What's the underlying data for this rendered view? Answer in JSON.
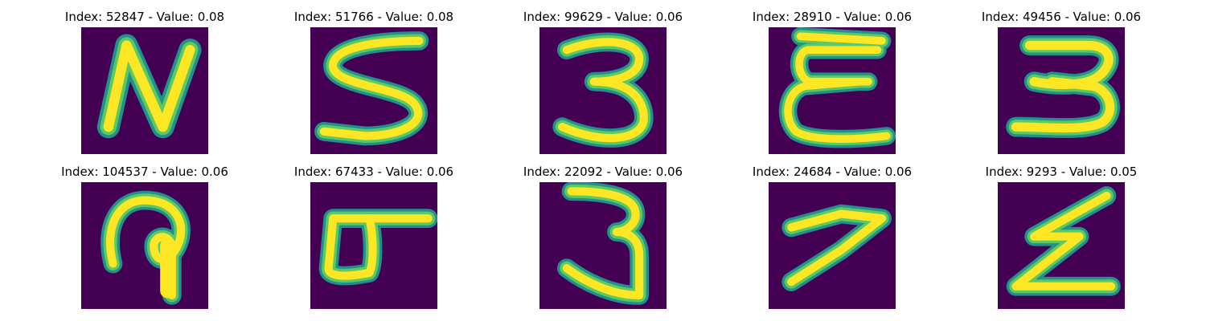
{
  "colors": {
    "background": "#440154",
    "edge": "#21918c",
    "edge_light": "#5ec962",
    "stroke": "#fde725",
    "page": "#ffffff"
  },
  "colormap": "viridis",
  "samples": [
    {
      "index_text": "52847",
      "value_text": "0.08",
      "glyph": "N"
    },
    {
      "index_text": "51766",
      "value_text": "0.08",
      "glyph": "S"
    },
    {
      "index_text": "99629",
      "value_text": "0.06",
      "glyph": "3"
    },
    {
      "index_text": "28910",
      "value_text": "0.06",
      "glyph": "E"
    },
    {
      "index_text": "49456",
      "value_text": "0.06",
      "glyph": "3"
    },
    {
      "index_text": "104537",
      "value_text": "0.06",
      "glyph": "P"
    },
    {
      "index_text": "67433",
      "value_text": "0.06",
      "glyph": "d"
    },
    {
      "index_text": "22092",
      "value_text": "0.06",
      "glyph": "3"
    },
    {
      "index_text": "24684",
      "value_text": "0.06",
      "glyph": "7"
    },
    {
      "index_text": "9293",
      "value_text": "0.05",
      "glyph": "Z"
    }
  ]
}
